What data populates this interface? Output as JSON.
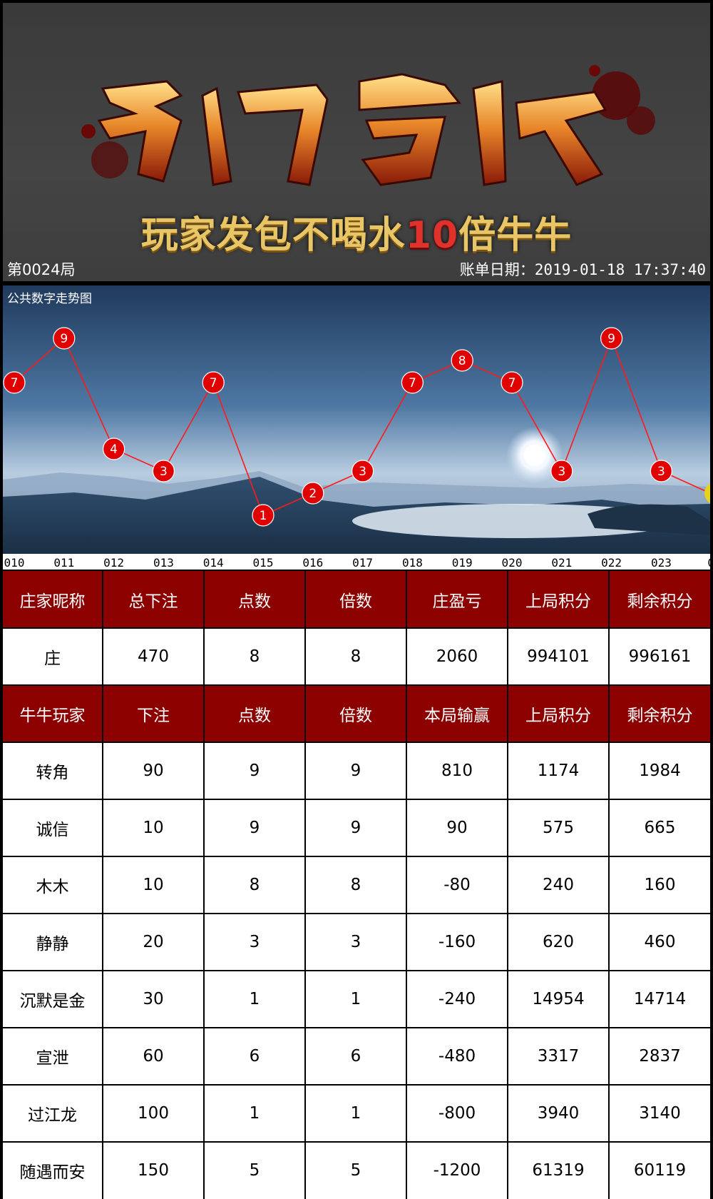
{
  "header": {
    "slogan_pre": "玩家发包不喝水",
    "slogan_num": "10",
    "slogan_post": "倍牛牛",
    "round": "第0024局",
    "bill_date": "账单日期：2019-01-18 17:37:40"
  },
  "trend": {
    "title": "公共数字走势图",
    "line_color": "#ff1a1a",
    "marker_color": "#e00000",
    "partial_marker_color": "#e6d21a"
  },
  "chart_data": {
    "type": "line",
    "x": [
      "010",
      "011",
      "012",
      "013",
      "014",
      "015",
      "016",
      "017",
      "018",
      "019",
      "020",
      "021",
      "022",
      "023",
      "0"
    ],
    "values": [
      7,
      9,
      4,
      3,
      7,
      1,
      2,
      3,
      7,
      8,
      7,
      3,
      9,
      3,
      null
    ],
    "ylim": [
      0,
      10
    ]
  },
  "banker_table": {
    "headers": [
      "庄家昵称",
      "总下注",
      "点数",
      "倍数",
      "庄盈亏",
      "上局积分",
      "剩余积分"
    ],
    "row": [
      "庄",
      "470",
      "8",
      "8",
      "2060",
      "994101",
      "996161"
    ]
  },
  "player_table": {
    "headers": [
      "牛牛玩家",
      "下注",
      "点数",
      "倍数",
      "本局输赢",
      "上局积分",
      "剩余积分"
    ],
    "rows": [
      [
        "转角",
        "90",
        "9",
        "9",
        "810",
        "1174",
        "1984"
      ],
      [
        "诚信",
        "10",
        "9",
        "9",
        "90",
        "575",
        "665"
      ],
      [
        "木木",
        "10",
        "8",
        "8",
        "-80",
        "240",
        "160"
      ],
      [
        "静静",
        "20",
        "3",
        "3",
        "-160",
        "620",
        "460"
      ],
      [
        "沉默是金",
        "30",
        "1",
        "1",
        "-240",
        "14954",
        "14714"
      ],
      [
        "宣泄",
        "60",
        "6",
        "6",
        "-480",
        "3317",
        "2837"
      ],
      [
        "过江龙",
        "100",
        "1",
        "1",
        "-800",
        "3940",
        "3140"
      ],
      [
        "随遇而安",
        "150",
        "5",
        "5",
        "-1200",
        "61319",
        "60119"
      ]
    ]
  },
  "colors": {
    "header_bg": "#8d0000",
    "header_text": "#ffffff"
  }
}
